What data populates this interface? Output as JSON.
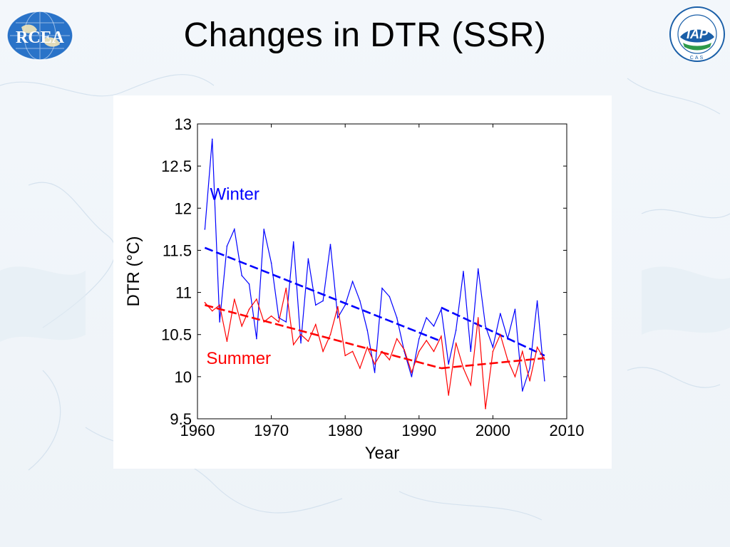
{
  "slide": {
    "title": "Changes in DTR (SSR)",
    "left_logo": {
      "icon": "rcea-logo",
      "text": "RCEA"
    },
    "right_logo": {
      "icon": "iap-cas-logo",
      "text": "IAP",
      "subtext": "CAS"
    }
  },
  "chart_data": {
    "type": "line",
    "title": "",
    "xlabel": "Year",
    "ylabel": "DTR (°C)",
    "xlim": [
      1960,
      2010
    ],
    "ylim": [
      9.5,
      13
    ],
    "xticks": [
      1960,
      1970,
      1980,
      1990,
      2000,
      2010
    ],
    "yticks": [
      9.5,
      10,
      10.5,
      11,
      11.5,
      12,
      12.5,
      13
    ],
    "x": [
      1961,
      1962,
      1963,
      1964,
      1965,
      1966,
      1967,
      1968,
      1969,
      1970,
      1971,
      1972,
      1973,
      1974,
      1975,
      1976,
      1977,
      1978,
      1979,
      1980,
      1981,
      1982,
      1983,
      1984,
      1985,
      1986,
      1987,
      1988,
      1989,
      1990,
      1991,
      1992,
      1993,
      1994,
      1995,
      1996,
      1997,
      1998,
      1999,
      2000,
      2001,
      2002,
      2003,
      2004,
      2005,
      2006,
      2007
    ],
    "series": [
      {
        "name": "Winter",
        "color": "#0000ff",
        "values": [
          11.75,
          12.82,
          10.65,
          11.55,
          11.75,
          11.2,
          11.1,
          10.45,
          11.75,
          11.35,
          10.7,
          10.65,
          11.6,
          10.4,
          11.4,
          10.85,
          10.9,
          11.57,
          10.7,
          10.85,
          11.13,
          10.9,
          10.55,
          10.05,
          11.05,
          10.95,
          10.7,
          10.3,
          10.0,
          10.45,
          10.7,
          10.6,
          10.8,
          10.15,
          10.55,
          11.25,
          10.3,
          11.28,
          10.6,
          10.35,
          10.75,
          10.45,
          10.8,
          9.83,
          10.1,
          10.9,
          9.95
        ],
        "trend": [
          {
            "x": [
              1961,
              1993
            ],
            "y": [
              11.53,
              10.42
            ]
          },
          {
            "x": [
              1993,
              2007
            ],
            "y": [
              10.82,
              10.25
            ]
          }
        ]
      },
      {
        "name": "Summer",
        "color": "#ff0000",
        "values": [
          10.88,
          10.78,
          10.85,
          10.42,
          10.92,
          10.6,
          10.8,
          10.92,
          10.65,
          10.72,
          10.65,
          11.05,
          10.38,
          10.5,
          10.42,
          10.62,
          10.3,
          10.5,
          10.83,
          10.25,
          10.3,
          10.1,
          10.35,
          10.15,
          10.3,
          10.2,
          10.45,
          10.32,
          10.05,
          10.3,
          10.43,
          10.3,
          10.48,
          9.78,
          10.4,
          10.1,
          9.9,
          10.7,
          9.62,
          10.3,
          10.5,
          10.2,
          10.0,
          10.3,
          9.95,
          10.35,
          10.2
        ],
        "trend": [
          {
            "x": [
              1961,
              1993
            ],
            "y": [
              10.85,
              10.1
            ]
          },
          {
            "x": [
              1993,
              2007
            ],
            "y": [
              10.1,
              10.22
            ]
          }
        ]
      }
    ],
    "annotations": [
      {
        "text": "Winter",
        "color": "#0000ff",
        "at": [
          1961.5,
          12.1
        ]
      },
      {
        "text": "Summer",
        "color": "#ff0000",
        "at": [
          1961,
          10.15
        ]
      }
    ],
    "grid": false,
    "legend": "none"
  }
}
